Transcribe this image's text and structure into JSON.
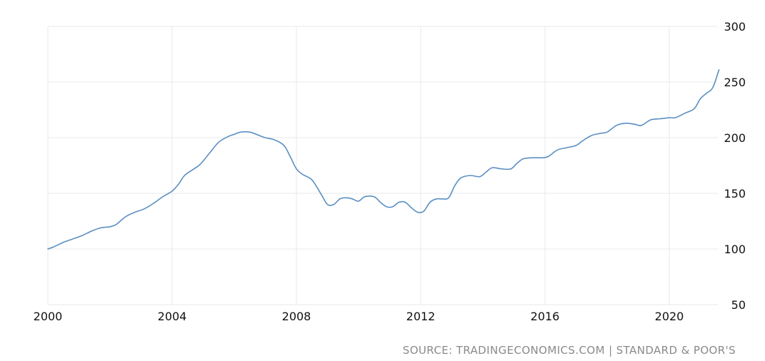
{
  "chart_data": {
    "type": "line",
    "xlim": [
      2000,
      2021.7
    ],
    "ylim": [
      50,
      300
    ],
    "y_axis_position": "right",
    "grid": true,
    "x_ticks": [
      2000,
      2004,
      2008,
      2012,
      2016,
      2020
    ],
    "x_tick_labels": [
      "2000",
      "2004",
      "2008",
      "2012",
      "2016",
      "2020"
    ],
    "y_ticks": [
      300,
      250,
      200,
      150,
      100,
      50
    ],
    "y_tick_labels": [
      "300",
      "250",
      "200",
      "150",
      "100",
      "50"
    ],
    "line_color": "#5b8fc2",
    "source": "SOURCE: TRADINGECONOMICS.COM | STANDARD & POOR'S",
    "series": [
      {
        "x": [
          2000.0,
          2000.2,
          2000.5,
          2000.8,
          2001.1,
          2001.4,
          2001.7,
          2002.0,
          2002.2,
          2002.5,
          2002.8,
          2003.1,
          2003.4,
          2003.7,
          2004.0,
          2004.2,
          2004.4,
          2004.7,
          2004.9,
          2005.2,
          2005.5,
          2005.8,
          2006.0,
          2006.2,
          2006.5,
          2006.8,
          2007.0,
          2007.3,
          2007.6,
          2007.8,
          2008.0,
          2008.2,
          2008.5,
          2008.8,
          2009.0,
          2009.2,
          2009.4,
          2009.6,
          2009.8,
          2010.0,
          2010.2,
          2010.5,
          2010.7,
          2010.9,
          2011.1,
          2011.3,
          2011.5,
          2011.7,
          2011.9,
          2012.1,
          2012.3,
          2012.5,
          2012.7,
          2012.9,
          2013.1,
          2013.3,
          2013.6,
          2013.9,
          2014.1,
          2014.3,
          2014.6,
          2014.9,
          2015.1,
          2015.3,
          2015.6,
          2015.9,
          2016.1,
          2016.4,
          2016.7,
          2017.0,
          2017.2,
          2017.5,
          2017.8,
          2018.0,
          2018.3,
          2018.6,
          2018.9,
          2019.1,
          2019.4,
          2019.7,
          2020.0,
          2020.2,
          2020.5,
          2020.8,
          2021.0,
          2021.2,
          2021.4,
          2021.6
        ],
        "y": [
          100,
          102,
          106,
          109,
          112,
          116,
          119,
          120,
          122,
          129,
          133,
          136,
          141,
          147,
          152,
          158,
          166,
          172,
          176,
          186,
          196,
          201,
          203,
          205,
          205,
          202,
          200,
          198,
          193,
          183,
          172,
          167,
          162,
          149,
          140,
          140,
          145,
          146,
          145,
          143,
          147,
          147,
          142,
          138,
          138,
          142,
          142,
          137,
          133,
          134,
          142,
          145,
          145,
          146,
          157,
          164,
          166,
          165,
          169,
          173,
          172,
          172,
          177,
          181,
          182,
          182,
          183,
          189,
          191,
          193,
          197,
          202,
          204,
          205,
          211,
          213,
          212,
          211,
          216,
          217,
          218,
          218,
          222,
          226,
          235,
          240,
          245,
          261
        ]
      }
    ]
  }
}
